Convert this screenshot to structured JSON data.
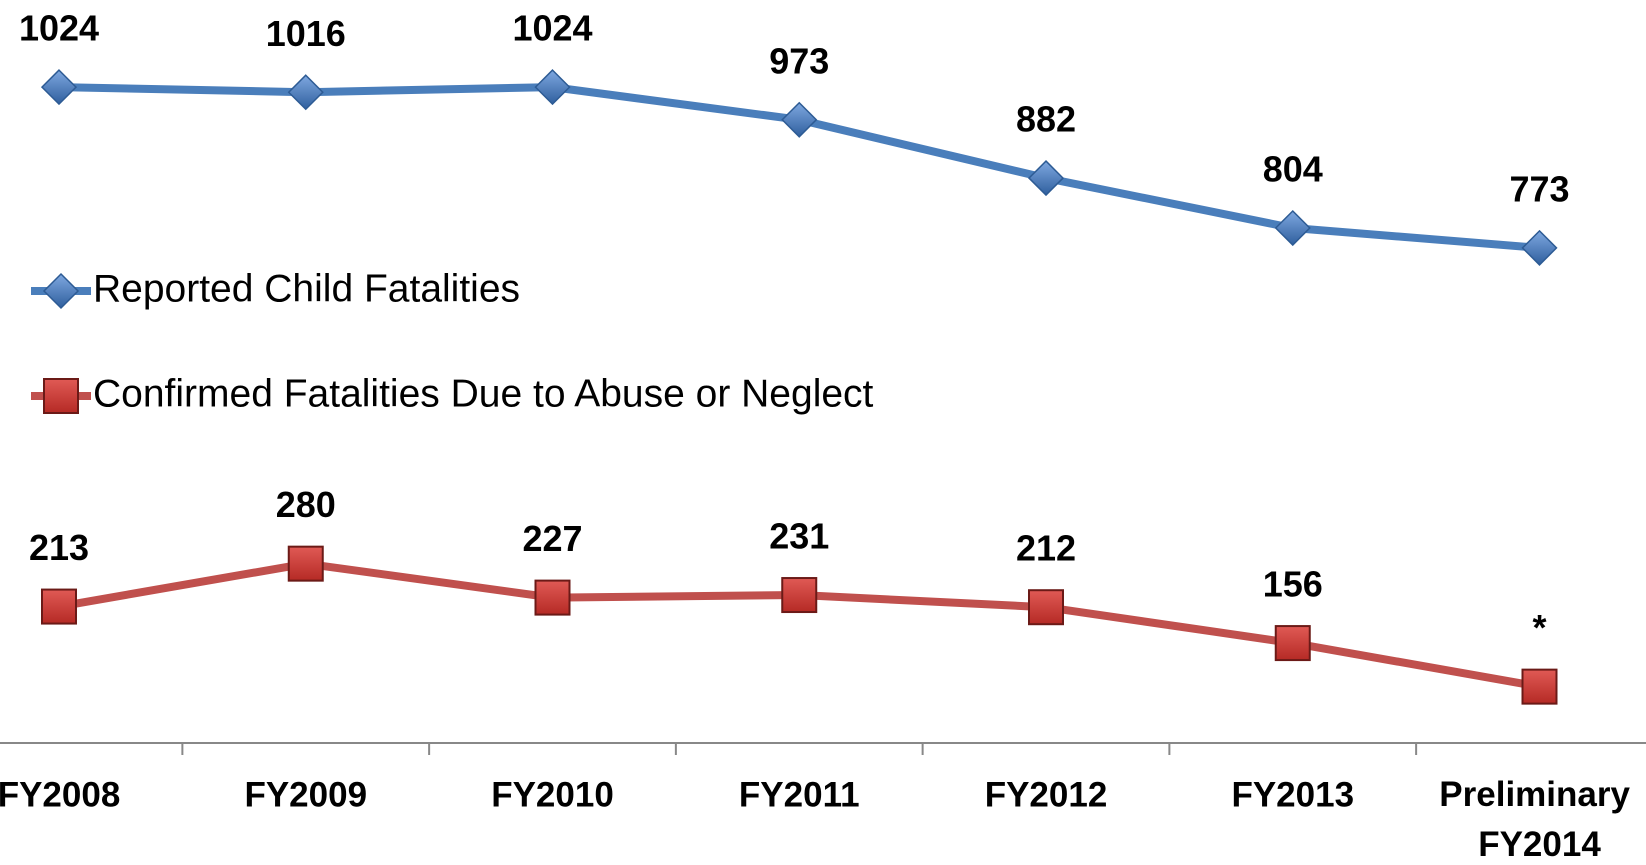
{
  "chart_data": {
    "type": "line",
    "categories": [
      "FY2008",
      "FY2009",
      "FY2010",
      "FY2011",
      "FY2012",
      "FY2013",
      "Preliminary FY2014"
    ],
    "series": [
      {
        "name": "Reported Child Fatalities",
        "color": "#4a7ebb",
        "marker": "diamond",
        "values": [
          1024,
          1016,
          1024,
          973,
          882,
          804,
          773
        ]
      },
      {
        "name": "Confirmed Fatalities Due to Abuse or Neglect",
        "color": "#c0504d",
        "marker": "square",
        "values": [
          213,
          280,
          227,
          231,
          212,
          156,
          88
        ],
        "value_labels": [
          "213",
          "280",
          "227",
          "231",
          "212",
          "156",
          "*"
        ]
      }
    ],
    "ylim": [
      0,
      1160
    ],
    "grid": false,
    "legend": "left"
  }
}
